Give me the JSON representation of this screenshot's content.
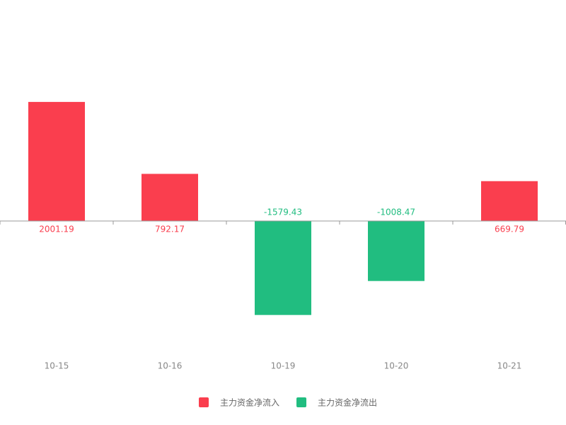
{
  "chart_data": {
    "type": "bar",
    "categories": [
      "10-15",
      "10-16",
      "10-19",
      "10-20",
      "10-21"
    ],
    "series": [
      {
        "name": "主力资金净流入",
        "color": "#fa3e4e",
        "values": [
          2001.19,
          792.17,
          null,
          null,
          669.79
        ]
      },
      {
        "name": "主力资金净流出",
        "color": "#21bd80",
        "values": [
          null,
          null,
          -1579.43,
          -1008.47,
          null
        ]
      }
    ],
    "ylim": [
      -2000,
      3000
    ],
    "legend": "bottom"
  }
}
